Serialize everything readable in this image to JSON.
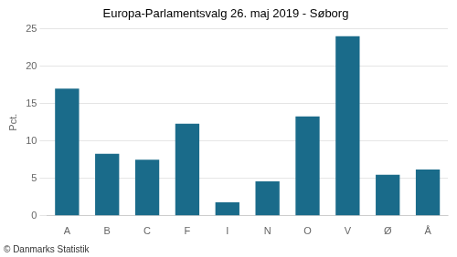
{
  "chart_data": {
    "type": "bar",
    "title": "Europa-Parlamentsvalg 26. maj 2019 - Søborg",
    "categories": [
      "A",
      "B",
      "C",
      "F",
      "I",
      "N",
      "O",
      "V",
      "Ø",
      "Å"
    ],
    "values": [
      17.0,
      8.3,
      7.5,
      12.3,
      1.8,
      4.6,
      13.3,
      24.0,
      5.5,
      6.2
    ],
    "color": "#1a6b8a",
    "ylabel": "Pct.",
    "footer": "© Danmarks Statistik",
    "ylim": [
      0,
      25
    ],
    "yticks": [
      0,
      5,
      10,
      15,
      20,
      25
    ],
    "grid": true
  }
}
